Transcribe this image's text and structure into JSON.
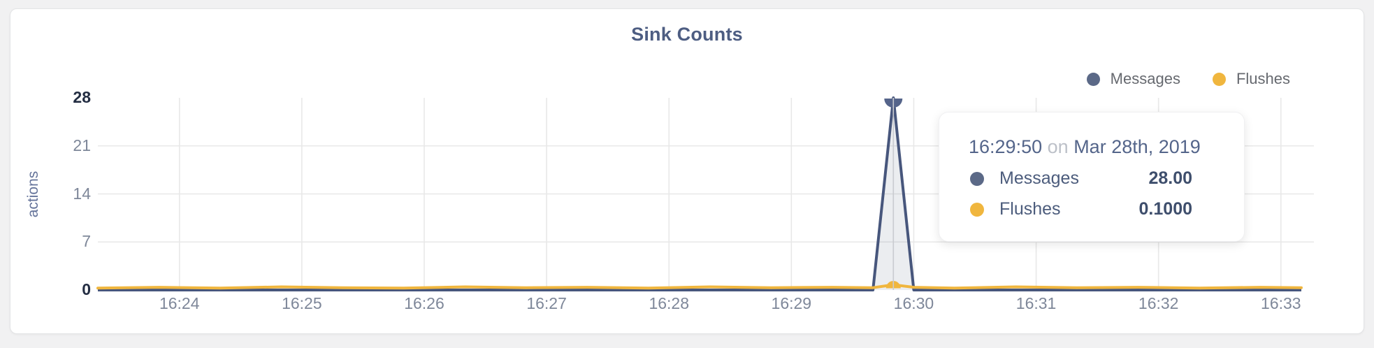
{
  "page": {
    "background": "#f1f1f2"
  },
  "card": {
    "background": "#ffffff",
    "border_color": "#e3e4e6"
  },
  "chart_data": {
    "type": "area",
    "title": "Sink Counts",
    "xlabel": "",
    "ylabel": "actions",
    "ylim": [
      0,
      28
    ],
    "y_ticks": [
      28,
      21,
      14,
      7,
      0
    ],
    "y_tick_emphasis": [
      28,
      0
    ],
    "x_ticks": [
      "16:24",
      "16:25",
      "16:26",
      "16:27",
      "16:28",
      "16:29",
      "16:30",
      "16:31",
      "16:32",
      "16:33"
    ],
    "x_start": "16:23:20",
    "x_end": "16:33:10",
    "grid": true,
    "legend_position": "top-right",
    "series": [
      {
        "name": "Messages",
        "color": "#5b6987",
        "line_color": "#47567c",
        "marker_color": "#55648a",
        "fill": "rgba(91,105,135,0.12)",
        "points": [
          {
            "t": "16:23:20",
            "v": 0
          },
          {
            "t": "16:29:40",
            "v": 0
          },
          {
            "t": "16:29:50",
            "v": 28
          },
          {
            "t": "16:30:00",
            "v": 0
          },
          {
            "t": "16:33:10",
            "v": 0
          }
        ]
      },
      {
        "name": "Flushes",
        "color": "#f0b63e",
        "points": [
          {
            "t": "16:23:20",
            "v": 0.02
          },
          {
            "t": "16:23:50",
            "v": 0.04
          },
          {
            "t": "16:24:20",
            "v": 0.02
          },
          {
            "t": "16:24:50",
            "v": 0.05
          },
          {
            "t": "16:25:20",
            "v": 0.03
          },
          {
            "t": "16:25:50",
            "v": 0.02
          },
          {
            "t": "16:26:20",
            "v": 0.05
          },
          {
            "t": "16:26:50",
            "v": 0.03
          },
          {
            "t": "16:27:20",
            "v": 0.04
          },
          {
            "t": "16:27:50",
            "v": 0.02
          },
          {
            "t": "16:28:20",
            "v": 0.05
          },
          {
            "t": "16:28:50",
            "v": 0.03
          },
          {
            "t": "16:29:20",
            "v": 0.04
          },
          {
            "t": "16:29:40",
            "v": 0.03
          },
          {
            "t": "16:29:50",
            "v": 0.1
          },
          {
            "t": "16:30:00",
            "v": 0.04
          },
          {
            "t": "16:30:20",
            "v": 0.02
          },
          {
            "t": "16:30:50",
            "v": 0.05
          },
          {
            "t": "16:31:20",
            "v": 0.03
          },
          {
            "t": "16:31:50",
            "v": 0.04
          },
          {
            "t": "16:32:20",
            "v": 0.02
          },
          {
            "t": "16:32:50",
            "v": 0.04
          },
          {
            "t": "16:33:10",
            "v": 0.03
          }
        ]
      }
    ],
    "hover_point": {
      "time": "16:29:50",
      "messages": 28.0,
      "flushes": 0.1
    },
    "grid_color": "#e8e8e8",
    "crosshair_color": "#c9cbd0",
    "title_color": "#4d5d82"
  },
  "tooltip": {
    "time": "16:29:50",
    "conjunction": "on",
    "date": "Mar 28th, 2019",
    "rows": [
      {
        "label": "Messages",
        "value": "28.00",
        "color": "#5b6987"
      },
      {
        "label": "Flushes",
        "value": "0.1000",
        "color": "#f0b63e"
      }
    ]
  }
}
